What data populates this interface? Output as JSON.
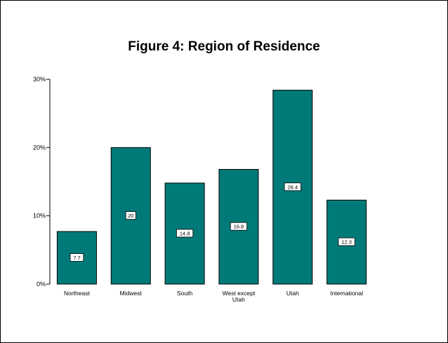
{
  "chart_data": {
    "type": "bar",
    "title": "Figure 4: Region of Residence",
    "xlabel": "",
    "ylabel": "",
    "categories": [
      "Northeast",
      "Midwest",
      "South",
      "West except Utah",
      "Utah",
      "International"
    ],
    "category_label_lines": [
      [
        "Northeast"
      ],
      [
        "Midwest"
      ],
      [
        "South"
      ],
      [
        "West except",
        "Utah"
      ],
      [
        "Utah"
      ],
      [
        "International"
      ]
    ],
    "values": [
      7.7,
      20,
      14.8,
      16.8,
      28.4,
      12.3
    ],
    "data_labels": [
      "7.7",
      "20",
      "14.8",
      "16.8",
      "28.4",
      "12.3"
    ],
    "ylim": [
      0,
      30
    ],
    "yticks": [
      0,
      10,
      20,
      30
    ],
    "ytick_labels": [
      "0%",
      "10%",
      "20%",
      "30%"
    ],
    "grid": false,
    "legend": "none",
    "bar_color": "#007A78"
  }
}
